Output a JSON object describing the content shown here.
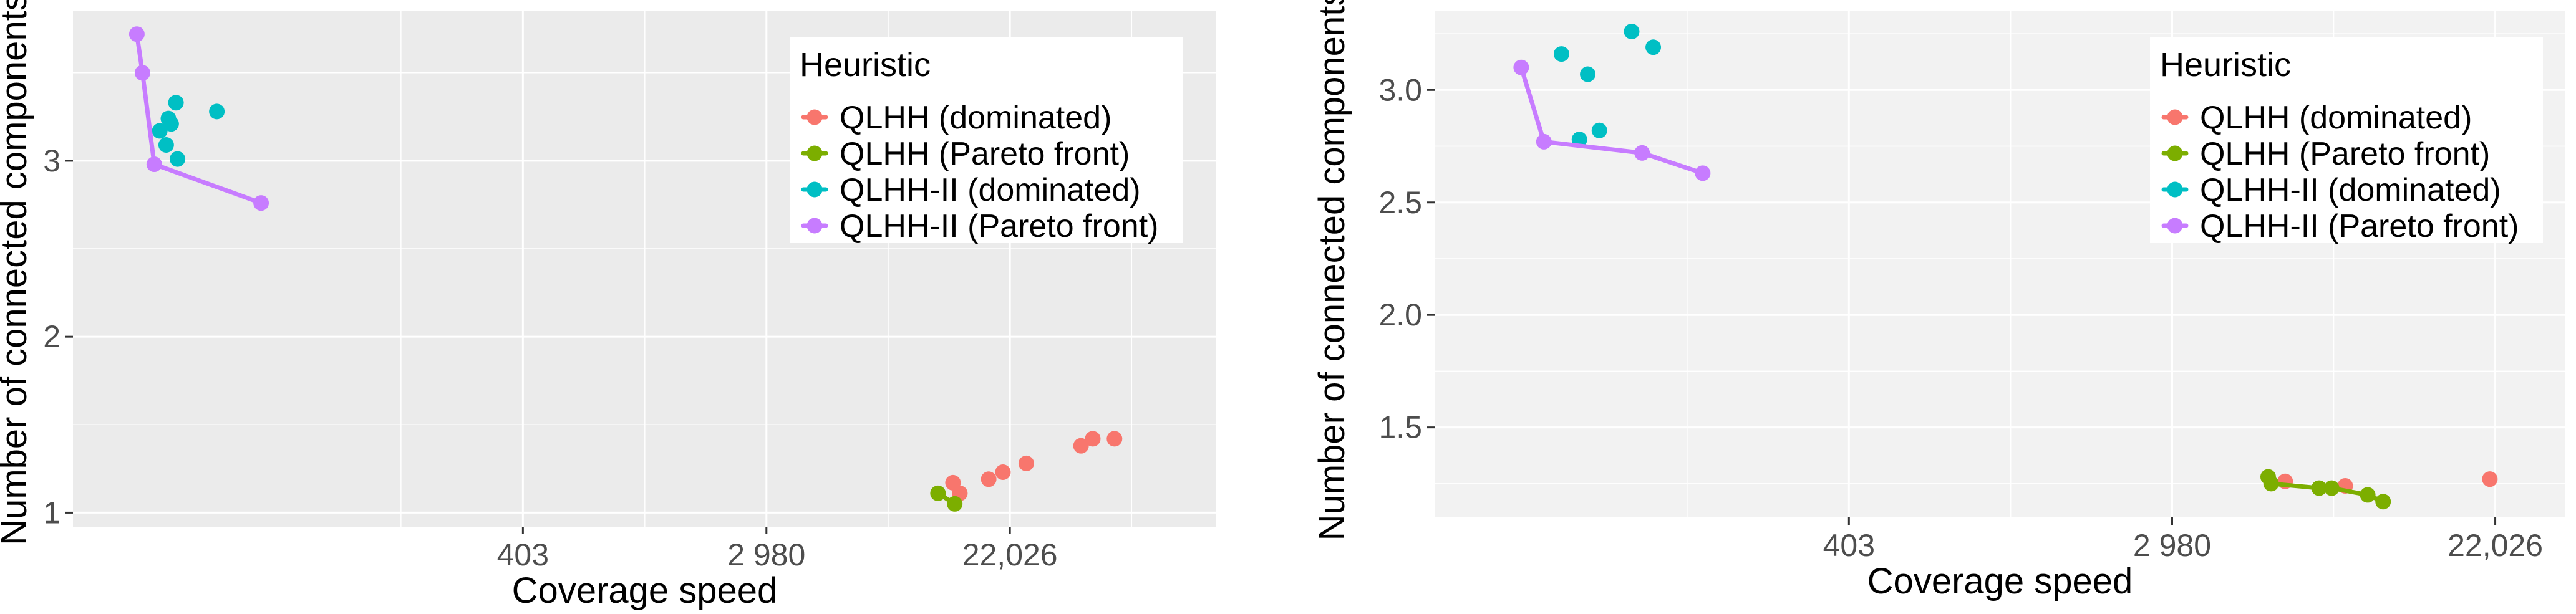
{
  "chart_data": [
    {
      "type": "scatter",
      "background": "#ebebeb",
      "grid": true,
      "xscale": "log",
      "xlabel": "Coverage speed",
      "ylabel": "Number of connected components",
      "xlim": [
        10,
        120000
      ],
      "ylim": [
        0.92,
        3.85
      ],
      "xticks": [
        403,
        2980,
        22026
      ],
      "xtick_labels": [
        "403",
        "2 980",
        "22,026"
      ],
      "xminor": [
        148,
        1097,
        8103,
        59874
      ],
      "yticks": [
        1,
        2,
        3
      ],
      "ytick_labels": [
        "1",
        "2",
        "3"
      ],
      "yminor": [
        1.5,
        2.5,
        3.5
      ],
      "legend": {
        "title": "Heuristic",
        "position": "top-right",
        "entries": [
          "QLHH (dominated)",
          "QLHH (Pareto front)",
          "QLHH-II (dominated)",
          "QLHH-II (Pareto front)"
        ],
        "colors": [
          "#F8766D",
          "#7CAE00",
          "#00BFC4",
          "#C77CFF"
        ]
      },
      "series": [
        {
          "name": "QLHH (dominated)",
          "color": "#F8766D",
          "line": false,
          "points": [
            [
              13800,
              1.17
            ],
            [
              14600,
              1.11
            ],
            [
              18500,
              1.19
            ],
            [
              20800,
              1.23
            ],
            [
              25200,
              1.28
            ],
            [
              39500,
              1.38
            ],
            [
              43500,
              1.42
            ],
            [
              52000,
              1.42
            ]
          ]
        },
        {
          "name": "QLHH (Pareto front)",
          "color": "#7CAE00",
          "line": true,
          "points": [
            [
              12200,
              1.11
            ],
            [
              14000,
              1.05
            ]
          ]
        },
        {
          "name": "QLHH-II (dominated)",
          "color": "#00BFC4",
          "line": false,
          "points": [
            [
              20.4,
              3.17
            ],
            [
              21.5,
              3.09
            ],
            [
              21.9,
              3.24
            ],
            [
              22.4,
              3.21
            ],
            [
              23.3,
              3.33
            ],
            [
              23.6,
              3.01
            ],
            [
              32.6,
              3.28
            ]
          ]
        },
        {
          "name": "QLHH-II (Pareto front)",
          "color": "#C77CFF",
          "line": true,
          "points": [
            [
              16.9,
              3.72
            ],
            [
              17.7,
              3.5
            ],
            [
              19.5,
              2.98
            ],
            [
              46.9,
              2.76
            ]
          ]
        }
      ]
    },
    {
      "type": "scatter",
      "background": "#f2f2f2",
      "grid": true,
      "xscale": "log",
      "xlabel": "Coverage speed",
      "ylabel": "Number of connected components",
      "xlim": [
        31,
        34000
      ],
      "ylim": [
        1.1,
        3.35
      ],
      "xticks": [
        403,
        2980,
        22026
      ],
      "xtick_labels": [
        "403",
        "2 980",
        "22,026"
      ],
      "xminor": [
        148,
        1097,
        8103
      ],
      "yticks": [
        1.5,
        2.0,
        2.5,
        3.0
      ],
      "ytick_labels": [
        "1.5",
        "2.0",
        "2.5",
        "3.0"
      ],
      "yminor": [
        1.25,
        1.75,
        2.25,
        2.75,
        3.25
      ],
      "legend": {
        "title": "Heuristic",
        "position": "top-right",
        "entries": [
          "QLHH (dominated)",
          "QLHH (Pareto front)",
          "QLHH-II (dominated)",
          "QLHH-II (Pareto front)"
        ],
        "colors": [
          "#F8766D",
          "#7CAE00",
          "#00BFC4",
          "#C77CFF"
        ]
      },
      "series": [
        {
          "name": "QLHH (dominated)",
          "color": "#F8766D",
          "line": false,
          "points": [
            [
              6000,
              1.26
            ],
            [
              8700,
              1.24
            ],
            [
              21300,
              1.27
            ]
          ]
        },
        {
          "name": "QLHH (Pareto front)",
          "color": "#7CAE00",
          "line": true,
          "points": [
            [
              5400,
              1.28
            ],
            [
              5500,
              1.25
            ],
            [
              7400,
              1.23
            ],
            [
              8000,
              1.23
            ],
            [
              10000,
              1.2
            ],
            [
              11000,
              1.17
            ]
          ]
        },
        {
          "name": "QLHH-II (dominated)",
          "color": "#00BFC4",
          "line": false,
          "points": [
            [
              68,
              3.16
            ],
            [
              76,
              2.78
            ],
            [
              80,
              3.07
            ],
            [
              86,
              2.82
            ],
            [
              105,
              3.26
            ],
            [
              120,
              3.19
            ]
          ]
        },
        {
          "name": "QLHH-II (Pareto front)",
          "color": "#C77CFF",
          "line": true,
          "points": [
            [
              53,
              3.1
            ],
            [
              61,
              2.77
            ],
            [
              112,
              2.72
            ],
            [
              163,
              2.63
            ]
          ]
        }
      ]
    }
  ]
}
